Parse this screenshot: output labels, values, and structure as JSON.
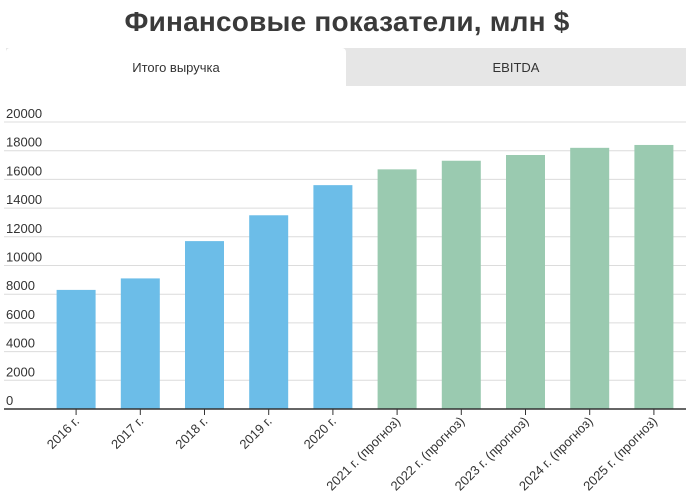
{
  "title": "Финансовые показатели, млн $",
  "tabs": [
    {
      "label": "Итого выручка",
      "active": true
    },
    {
      "label": "EBITDA",
      "active": false
    }
  ],
  "colors": {
    "actual": "#6cbde8",
    "forecast": "#9acab0",
    "grid": "#dcdcdc",
    "axis": "#333333"
  },
  "chart_data": {
    "type": "bar",
    "title": "Финансовые показатели, млн $",
    "categories": [
      "2016 г.",
      "2017 г.",
      "2018 г.",
      "2019 г.",
      "2020 г.",
      "2021 г. (прогноз)",
      "2022 г. (прогноз)",
      "2023 г. (прогноз)",
      "2024 г. (прогноз)",
      "2025 г. (прогноз)"
    ],
    "values": [
      8300,
      9100,
      11700,
      13500,
      15600,
      16700,
      17300,
      17700,
      18200,
      18400
    ],
    "forecast": [
      false,
      false,
      false,
      false,
      false,
      true,
      true,
      true,
      true,
      true
    ],
    "yticks": [
      0,
      2000,
      4000,
      6000,
      8000,
      10000,
      12000,
      14000,
      16000,
      18000,
      20000
    ],
    "ylim": [
      0,
      20000
    ],
    "xlabel": "",
    "ylabel": "",
    "grid": true,
    "legend": "none"
  }
}
